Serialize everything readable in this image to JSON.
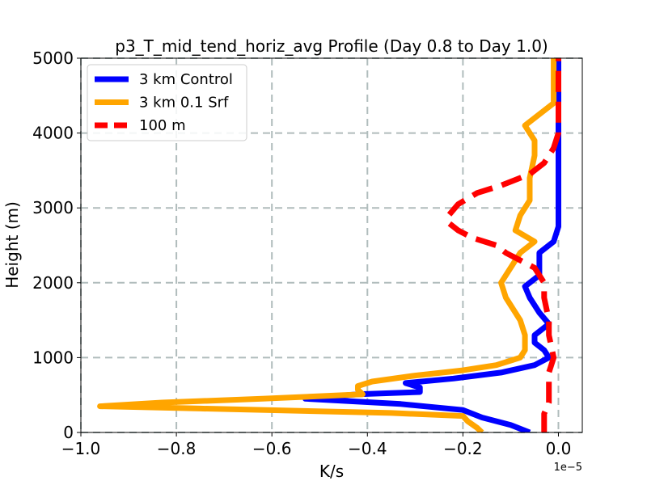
{
  "chart_data": {
    "type": "line",
    "title": "p3_T_mid_tend_horiz_avg Profile (Day 0.8 to Day 1.0)",
    "xlabel": "K/s",
    "ylabel": "Height (m)",
    "x_offset_label": "1e−5",
    "xlim": [
      -1.0,
      0.05
    ],
    "ylim": [
      0,
      5000
    ],
    "grid": true,
    "legend_position": "upper-left",
    "x_ticks": [
      -1.0,
      -0.8,
      -0.6,
      -0.4,
      -0.2,
      0.0
    ],
    "x_tick_labels": [
      "−1.0",
      "−0.8",
      "−0.6",
      "−0.4",
      "−0.2",
      "0.0"
    ],
    "y_ticks": [
      0,
      1000,
      2000,
      3000,
      4000,
      5000
    ],
    "y_tick_labels": [
      "0",
      "1000",
      "2000",
      "3000",
      "4000",
      "5000"
    ],
    "series": [
      {
        "name": "3 km Control",
        "color": "#0000ff",
        "dash": "solid",
        "points": [
          [
            -0.06,
            0
          ],
          [
            -0.1,
            100
          ],
          [
            -0.16,
            200
          ],
          [
            -0.2,
            300
          ],
          [
            -0.33,
            380
          ],
          [
            -0.53,
            450
          ],
          [
            -0.42,
            510
          ],
          [
            -0.29,
            540
          ],
          [
            -0.29,
            600
          ],
          [
            -0.32,
            660
          ],
          [
            -0.22,
            720
          ],
          [
            -0.12,
            800
          ],
          [
            -0.05,
            900
          ],
          [
            -0.02,
            1000
          ],
          [
            -0.03,
            1100
          ],
          [
            -0.05,
            1200
          ],
          [
            -0.05,
            1300
          ],
          [
            -0.02,
            1450
          ],
          [
            -0.04,
            1600
          ],
          [
            -0.06,
            1800
          ],
          [
            -0.07,
            1950
          ],
          [
            -0.04,
            2100
          ],
          [
            -0.04,
            2400
          ],
          [
            -0.01,
            2550
          ],
          [
            -0.0,
            2750
          ],
          [
            0.0,
            3000
          ],
          [
            0.0,
            3500
          ],
          [
            0.0,
            4000
          ],
          [
            0.0,
            4500
          ],
          [
            0.0,
            5000
          ]
        ]
      },
      {
        "name": "3 km 0.1 Srf",
        "color": "#ffa500",
        "dash": "solid",
        "points": [
          [
            -0.16,
            0
          ],
          [
            -0.17,
            60
          ],
          [
            -0.19,
            150
          ],
          [
            -0.2,
            220
          ],
          [
            -0.35,
            260
          ],
          [
            -0.75,
            320
          ],
          [
            -0.96,
            350
          ],
          [
            -0.83,
            400
          ],
          [
            -0.62,
            450
          ],
          [
            -0.41,
            510
          ],
          [
            -0.42,
            570
          ],
          [
            -0.42,
            620
          ],
          [
            -0.39,
            680
          ],
          [
            -0.3,
            760
          ],
          [
            -0.2,
            830
          ],
          [
            -0.13,
            900
          ],
          [
            -0.08,
            1000
          ],
          [
            -0.07,
            1100
          ],
          [
            -0.07,
            1300
          ],
          [
            -0.08,
            1500
          ],
          [
            -0.11,
            1800
          ],
          [
            -0.12,
            2000
          ],
          [
            -0.1,
            2200
          ],
          [
            -0.08,
            2400
          ],
          [
            -0.05,
            2550
          ],
          [
            -0.09,
            2700
          ],
          [
            -0.08,
            2900
          ],
          [
            -0.06,
            3100
          ],
          [
            -0.06,
            3400
          ],
          [
            -0.05,
            3700
          ],
          [
            -0.05,
            3900
          ],
          [
            -0.07,
            4100
          ],
          [
            -0.04,
            4250
          ],
          [
            -0.01,
            4400
          ],
          [
            -0.01,
            4700
          ],
          [
            -0.01,
            5000
          ]
        ]
      },
      {
        "name": "100 m",
        "color": "#ff0000",
        "dash": "dashed",
        "points": [
          [
            -0.03,
            0
          ],
          [
            -0.03,
            100
          ],
          [
            -0.03,
            250
          ],
          [
            -0.02,
            400
          ],
          [
            -0.02,
            600
          ],
          [
            -0.02,
            800
          ],
          [
            -0.01,
            1000
          ],
          [
            -0.02,
            1300
          ],
          [
            -0.02,
            1500
          ],
          [
            -0.03,
            1800
          ],
          [
            -0.03,
            2000
          ],
          [
            -0.05,
            2200
          ],
          [
            -0.08,
            2300
          ],
          [
            -0.11,
            2400
          ],
          [
            -0.13,
            2500
          ],
          [
            -0.18,
            2600
          ],
          [
            -0.21,
            2700
          ],
          [
            -0.23,
            2800
          ],
          [
            -0.23,
            2900
          ],
          [
            -0.21,
            3050
          ],
          [
            -0.17,
            3200
          ],
          [
            -0.12,
            3300
          ],
          [
            -0.06,
            3450
          ],
          [
            -0.03,
            3600
          ],
          [
            -0.01,
            3800
          ],
          [
            0.0,
            4000
          ],
          [
            0.0,
            4500
          ],
          [
            0.0,
            5000
          ]
        ]
      }
    ]
  }
}
